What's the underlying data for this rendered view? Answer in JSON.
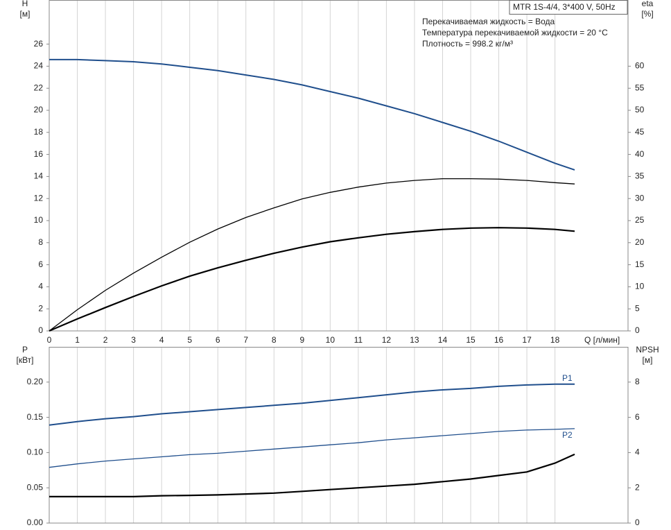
{
  "chart_data": [
    {
      "type": "line",
      "info_box": "MTR 1S-4/4, 3*400 V, 50Hz",
      "annotations": [
        "Перекачиваемая жидкость = Вода",
        "Температура перекачиваемой жидкости = 20 °C",
        "Плотность = 998.2 кг/м³"
      ],
      "xlabel": "Q [л/мин]",
      "ylabel": "H",
      "yunit": "[м]",
      "y2label": "eta",
      "y2unit": "[%]",
      "x": [
        0,
        1,
        2,
        3,
        4,
        5,
        6,
        7,
        8,
        9,
        10,
        11,
        12,
        13,
        14,
        15,
        16,
        17,
        18,
        18.7
      ],
      "series": [
        {
          "color": "#1f4e8c",
          "axis": "y",
          "line_width": 2,
          "values": [
            24.6,
            24.6,
            24.5,
            24.4,
            24.2,
            23.9,
            23.6,
            23.2,
            22.8,
            22.3,
            21.7,
            21.1,
            20.4,
            19.7,
            18.9,
            18.1,
            17.2,
            16.2,
            15.2,
            14.6
          ]
        },
        {
          "color": "#000000",
          "axis": "y2",
          "line_width": 1.3,
          "values": [
            0,
            4.8,
            9.2,
            13.1,
            16.7,
            20.1,
            23.1,
            25.7,
            27.9,
            29.9,
            31.4,
            32.6,
            33.5,
            34.1,
            34.5,
            34.5,
            34.4,
            34.1,
            33.6,
            33.3
          ]
        },
        {
          "color": "#000000",
          "axis": "y2",
          "line_width": 2.2,
          "values": [
            0,
            2.7,
            5.3,
            7.8,
            10.2,
            12.4,
            14.3,
            16.0,
            17.6,
            19.0,
            20.2,
            21.1,
            21.9,
            22.5,
            23.0,
            23.3,
            23.4,
            23.3,
            23.0,
            22.6
          ]
        }
      ],
      "xlim": [
        0,
        20.6
      ],
      "xticks": [
        0,
        1,
        2,
        3,
        4,
        5,
        6,
        7,
        8,
        9,
        10,
        11,
        12,
        13,
        14,
        15,
        16,
        17,
        18
      ],
      "show_xtick_labels": true,
      "ylim": [
        0,
        30
      ],
      "yticks": [
        0,
        2,
        4,
        6,
        8,
        10,
        12,
        14,
        16,
        18,
        20,
        22,
        24,
        26
      ],
      "y2lim": [
        0,
        75
      ],
      "y2ticks": [
        0,
        5,
        10,
        15,
        20,
        25,
        30,
        35,
        40,
        45,
        50,
        55,
        60
      ],
      "grid": "x"
    },
    {
      "type": "line",
      "ylabel": "P",
      "yunit": "[кВт]",
      "y2label": "NPSH",
      "y2unit": "[м]",
      "x": [
        0,
        1,
        2,
        3,
        4,
        5,
        6,
        7,
        8,
        9,
        10,
        11,
        12,
        13,
        14,
        15,
        16,
        17,
        18,
        18.7
      ],
      "series": [
        {
          "name": "P1",
          "color": "#1f4e8c",
          "axis": "y",
          "line_width": 2,
          "values": [
            0.139,
            0.144,
            0.148,
            0.151,
            0.155,
            0.158,
            0.161,
            0.164,
            0.167,
            0.17,
            0.174,
            0.178,
            0.182,
            0.186,
            0.189,
            0.191,
            0.194,
            0.196,
            0.197,
            0.197
          ]
        },
        {
          "name": "P2",
          "color": "#1f4e8c",
          "axis": "y",
          "line_width": 1.3,
          "values": [
            0.079,
            0.084,
            0.088,
            0.091,
            0.094,
            0.097,
            0.099,
            0.102,
            0.105,
            0.108,
            0.111,
            0.114,
            0.118,
            0.121,
            0.124,
            0.127,
            0.13,
            0.132,
            0.133,
            0.134
          ]
        },
        {
          "color": "#000000",
          "axis": "y2",
          "line_width": 2.2,
          "values": [
            1.5,
            1.5,
            1.5,
            1.5,
            1.55,
            1.57,
            1.6,
            1.65,
            1.7,
            1.8,
            1.9,
            2.0,
            2.1,
            2.2,
            2.35,
            2.5,
            2.7,
            2.9,
            3.4,
            3.9
          ]
        }
      ],
      "xlim": [
        0,
        20.6
      ],
      "xticks": [
        0,
        1,
        2,
        3,
        4,
        5,
        6,
        7,
        8,
        9,
        10,
        11,
        12,
        13,
        14,
        15,
        16,
        17,
        18
      ],
      "show_xtick_labels": false,
      "ylim": [
        0,
        0.25
      ],
      "yticks": [
        {
          "value": 0,
          "label": "0.00"
        },
        {
          "value": 0.05,
          "label": "0.05"
        },
        {
          "value": 0.1,
          "label": "0.10"
        },
        {
          "value": 0.15,
          "label": "0.15"
        },
        {
          "value": 0.2,
          "label": "0.20"
        }
      ],
      "y2lim": [
        0,
        10
      ],
      "y2ticks": [
        0,
        2,
        4,
        6,
        8
      ],
      "grid": "x"
    }
  ]
}
